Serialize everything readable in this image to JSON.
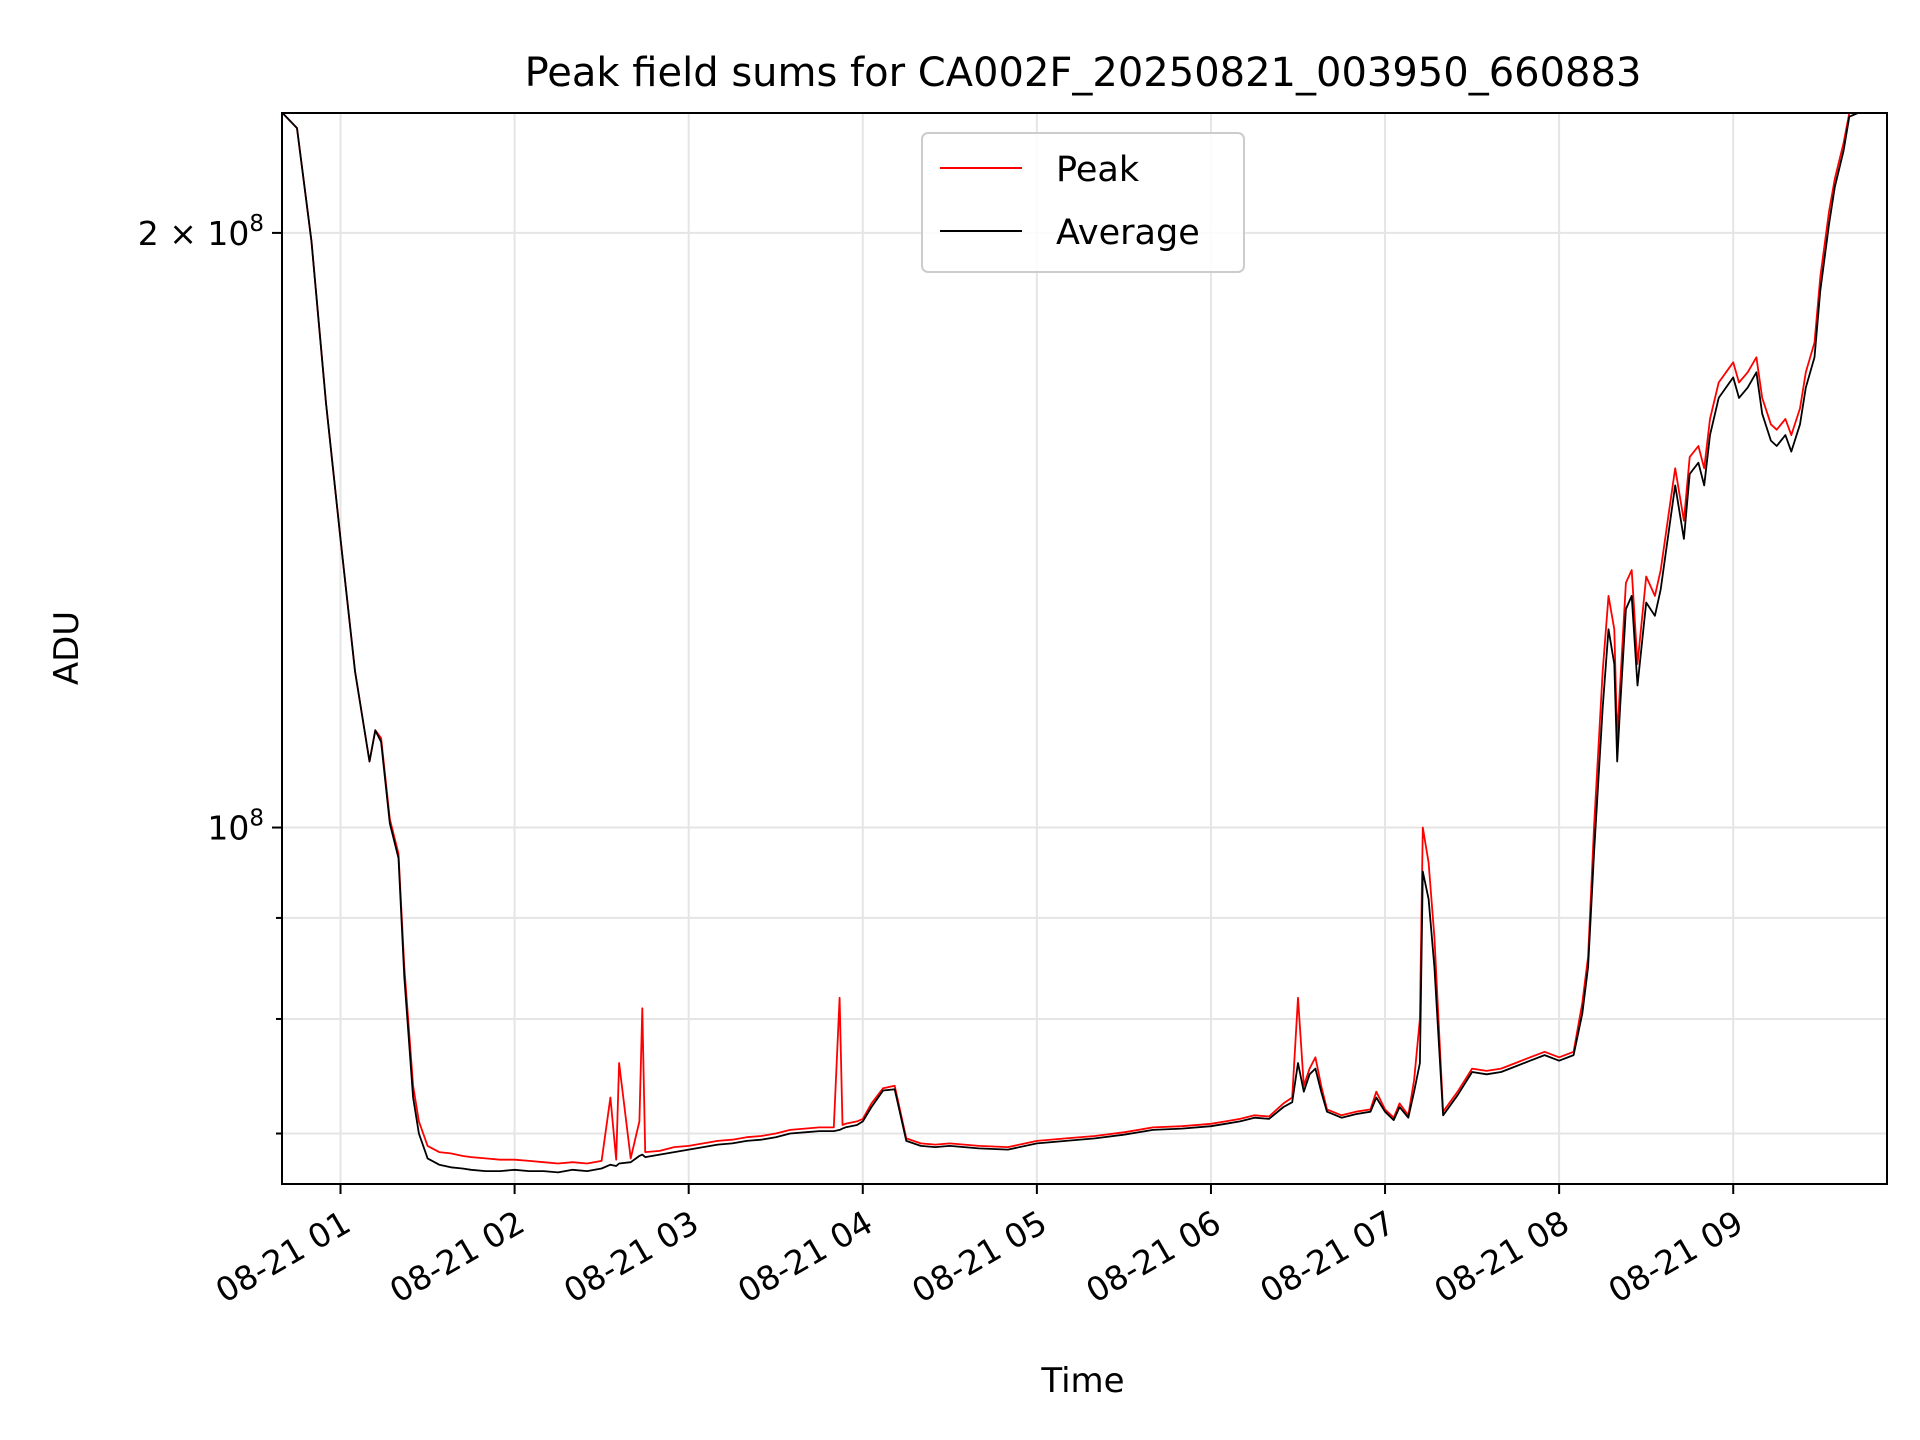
{
  "chart_data": {
    "type": "line",
    "title": "Peak field sums for CA002F_20250821_003950_660883",
    "xlabel": "Time",
    "ylabel": "ADU",
    "yscale": "log",
    "ylim": [
      66000000,
      230000000
    ],
    "xlim": [
      "2025-08-21 00:39:50",
      "2025-08-21 09:53:00"
    ],
    "grid": true,
    "legend_position": "top-center",
    "x_ticks": [
      "08-21 01",
      "08-21 02",
      "08-21 03",
      "08-21 04",
      "08-21 05",
      "08-21 06",
      "08-21 07",
      "08-21 08",
      "08-21 09"
    ],
    "y_ticks": [
      {
        "value": 100000000,
        "base": "10",
        "exp": "8",
        "coef": ""
      },
      {
        "value": 200000000,
        "base": "10",
        "exp": "8",
        "coef": "2 × "
      }
    ],
    "y_minor_ticks": [
      70000000,
      80000000,
      90000000
    ],
    "series": [
      {
        "name": "Peak",
        "color": "#ff0000",
        "x": [
          "00:40",
          "00:45",
          "00:50",
          "00:55",
          "01:00",
          "01:05",
          "01:10",
          "01:12",
          "01:14",
          "01:17",
          "01:20",
          "01:22",
          "01:25",
          "01:27",
          "01:30",
          "01:34",
          "01:38",
          "01:42",
          "01:45",
          "01:50",
          "01:55",
          "02:00",
          "02:05",
          "02:10",
          "02:15",
          "02:20",
          "02:25",
          "02:30",
          "02:33",
          "02:35",
          "02:36",
          "02:40",
          "02:43",
          "02:44",
          "02:45",
          "02:50",
          "02:55",
          "03:00",
          "03:05",
          "03:10",
          "03:15",
          "03:20",
          "03:25",
          "03:30",
          "03:35",
          "03:40",
          "03:45",
          "03:50",
          "03:52",
          "03:53",
          "03:54",
          "03:58",
          "04:00",
          "04:03",
          "04:07",
          "04:11",
          "04:15",
          "04:20",
          "04:25",
          "04:30",
          "04:40",
          "04:50",
          "05:00",
          "05:10",
          "05:20",
          "05:30",
          "05:40",
          "05:50",
          "06:00",
          "06:05",
          "06:10",
          "06:15",
          "06:20",
          "06:25",
          "06:28",
          "06:30",
          "06:32",
          "06:34",
          "06:36",
          "06:38",
          "06:40",
          "06:45",
          "06:50",
          "06:55",
          "06:57",
          "07:00",
          "07:03",
          "07:05",
          "07:08",
          "07:10",
          "07:12",
          "07:13",
          "07:15",
          "07:17",
          "07:20",
          "07:25",
          "07:30",
          "07:35",
          "07:40",
          "07:45",
          "07:50",
          "07:55",
          "08:00",
          "08:05",
          "08:08",
          "08:10",
          "08:12",
          "08:15",
          "08:17",
          "08:19",
          "08:20",
          "08:21",
          "08:23",
          "08:25",
          "08:27",
          "08:30",
          "08:33",
          "08:35",
          "08:38",
          "08:40",
          "08:43",
          "08:45",
          "08:48",
          "08:50",
          "08:52",
          "08:55",
          "09:00",
          "09:02",
          "09:05",
          "09:08",
          "09:10",
          "09:13",
          "09:15",
          "09:18",
          "09:20",
          "09:23",
          "09:25",
          "09:28",
          "09:30",
          "09:33",
          "09:35",
          "09:38",
          "09:40",
          "09:43",
          "09:45",
          "09:48",
          "09:50",
          "09:53"
        ],
        "values": [
          232000000,
          226000000,
          198000000,
          164000000,
          140000000,
          120000000,
          108000000,
          112000000,
          111000000,
          101000000,
          97000000,
          85000000,
          74000000,
          71000000,
          69000000,
          68500000,
          68400000,
          68200000,
          68100000,
          68000000,
          67900000,
          67900000,
          67800000,
          67700000,
          67600000,
          67700000,
          67600000,
          67800000,
          73000000,
          67900000,
          76000000,
          68000000,
          71000000,
          81000000,
          68500000,
          68600000,
          68900000,
          69000000,
          69200000,
          69400000,
          69500000,
          69700000,
          69800000,
          70000000,
          70300000,
          70400000,
          70500000,
          70500000,
          82000000,
          70700000,
          70800000,
          71000000,
          71200000,
          72500000,
          73800000,
          74000000,
          69600000,
          69200000,
          69100000,
          69200000,
          69000000,
          68900000,
          69400000,
          69600000,
          69800000,
          70100000,
          70500000,
          70600000,
          70800000,
          71000000,
          71200000,
          71500000,
          71400000,
          72500000,
          73000000,
          82000000,
          74000000,
          75500000,
          76500000,
          74000000,
          72000000,
          71500000,
          71800000,
          72000000,
          73500000,
          72000000,
          71300000,
          72500000,
          71500000,
          74500000,
          80000000,
          100000000,
          96000000,
          88000000,
          71800000,
          73500000,
          75500000,
          75300000,
          75500000,
          76000000,
          76500000,
          77000000,
          76500000,
          77000000,
          81500000,
          86000000,
          100000000,
          120000000,
          131000000,
          126000000,
          111000000,
          118000000,
          133000000,
          135000000,
          121000000,
          134000000,
          131000000,
          135000000,
          145000000,
          152000000,
          143000000,
          154000000,
          156000000,
          152000000,
          161000000,
          168000000,
          172000000,
          168000000,
          170000000,
          173000000,
          165000000,
          160000000,
          159000000,
          161000000,
          158000000,
          163000000,
          170000000,
          176000000,
          190000000,
          205000000,
          213000000,
          222000000,
          230000000,
          232000000,
          232000000,
          232000000,
          232000000,
          232000000
        ]
      },
      {
        "name": "Average",
        "color": "#000000",
        "x": [
          "00:40",
          "00:45",
          "00:50",
          "00:55",
          "01:00",
          "01:05",
          "01:10",
          "01:12",
          "01:14",
          "01:17",
          "01:20",
          "01:22",
          "01:25",
          "01:27",
          "01:30",
          "01:34",
          "01:38",
          "01:42",
          "01:45",
          "01:50",
          "01:55",
          "02:00",
          "02:05",
          "02:10",
          "02:15",
          "02:20",
          "02:25",
          "02:30",
          "02:33",
          "02:35",
          "02:36",
          "02:40",
          "02:43",
          "02:44",
          "02:45",
          "02:50",
          "02:55",
          "03:00",
          "03:05",
          "03:10",
          "03:15",
          "03:20",
          "03:25",
          "03:30",
          "03:35",
          "03:40",
          "03:45",
          "03:50",
          "03:52",
          "03:53",
          "03:54",
          "03:58",
          "04:00",
          "04:03",
          "04:07",
          "04:11",
          "04:15",
          "04:20",
          "04:25",
          "04:30",
          "04:40",
          "04:50",
          "05:00",
          "05:10",
          "05:20",
          "05:30",
          "05:40",
          "05:50",
          "06:00",
          "06:05",
          "06:10",
          "06:15",
          "06:20",
          "06:25",
          "06:28",
          "06:30",
          "06:32",
          "06:34",
          "06:36",
          "06:38",
          "06:40",
          "06:45",
          "06:50",
          "06:55",
          "06:57",
          "07:00",
          "07:03",
          "07:05",
          "07:08",
          "07:10",
          "07:12",
          "07:13",
          "07:15",
          "07:17",
          "07:20",
          "07:25",
          "07:30",
          "07:35",
          "07:40",
          "07:45",
          "07:50",
          "07:55",
          "08:00",
          "08:05",
          "08:08",
          "08:10",
          "08:12",
          "08:15",
          "08:17",
          "08:19",
          "08:20",
          "08:21",
          "08:23",
          "08:25",
          "08:27",
          "08:30",
          "08:33",
          "08:35",
          "08:38",
          "08:40",
          "08:43",
          "08:45",
          "08:48",
          "08:50",
          "08:52",
          "08:55",
          "09:00",
          "09:02",
          "09:05",
          "09:08",
          "09:10",
          "09:13",
          "09:15",
          "09:18",
          "09:20",
          "09:23",
          "09:25",
          "09:28",
          "09:30",
          "09:33",
          "09:35",
          "09:38",
          "09:40",
          "09:43",
          "09:45",
          "09:48",
          "09:50",
          "09:53"
        ],
        "values": [
          232000000,
          226000000,
          198000000,
          164000000,
          140000000,
          120000000,
          108000000,
          112000000,
          110500000,
          100500000,
          96500000,
          84000000,
          73000000,
          70000000,
          68000000,
          67500000,
          67300000,
          67200000,
          67100000,
          67000000,
          67000000,
          67100000,
          67000000,
          67000000,
          66900000,
          67100000,
          67000000,
          67200000,
          67500000,
          67400000,
          67600000,
          67700000,
          68200000,
          68300000,
          68100000,
          68300000,
          68500000,
          68700000,
          68900000,
          69100000,
          69200000,
          69400000,
          69500000,
          69700000,
          70000000,
          70100000,
          70200000,
          70200000,
          70300000,
          70400000,
          70500000,
          70700000,
          71000000,
          72200000,
          73600000,
          73700000,
          69400000,
          69000000,
          68900000,
          69000000,
          68800000,
          68700000,
          69200000,
          69400000,
          69600000,
          69900000,
          70300000,
          70400000,
          70600000,
          70800000,
          71000000,
          71300000,
          71200000,
          72200000,
          72600000,
          76000000,
          73500000,
          75000000,
          75500000,
          73500000,
          71800000,
          71300000,
          71600000,
          71800000,
          73000000,
          71800000,
          71100000,
          72200000,
          71300000,
          73500000,
          76000000,
          95000000,
          92000000,
          85000000,
          71500000,
          73200000,
          75200000,
          75000000,
          75200000,
          75700000,
          76200000,
          76700000,
          76200000,
          76700000,
          80500000,
          85000000,
          97000000,
          115000000,
          126000000,
          121000000,
          108000000,
          115000000,
          129000000,
          131000000,
          118000000,
          130000000,
          128000000,
          132000000,
          142000000,
          149000000,
          140000000,
          151000000,
          153000000,
          149000000,
          158000000,
          165000000,
          169000000,
          165000000,
          167000000,
          170000000,
          162000000,
          157000000,
          156000000,
          158000000,
          155000000,
          160000000,
          167000000,
          173000000,
          187000000,
          202000000,
          211000000,
          220000000,
          229000000,
          232000000,
          232000000,
          232000000,
          232000000,
          232000000
        ]
      }
    ]
  }
}
